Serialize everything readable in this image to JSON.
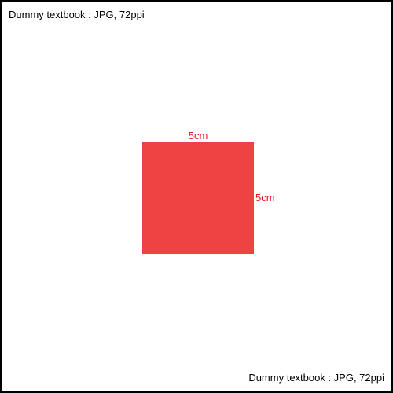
{
  "captions": {
    "top": "Dummy textbook : JPG, 72ppi",
    "bottom": "Dummy textbook : JPG, 72ppi"
  },
  "shape": {
    "type": "square",
    "fill_color": "#ef4343",
    "width_label": "5cm",
    "height_label": "5cm",
    "label_color": "#e8141c"
  }
}
